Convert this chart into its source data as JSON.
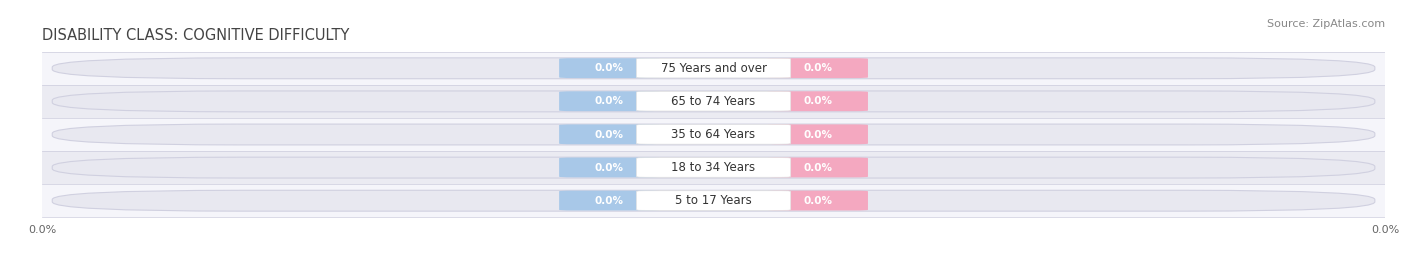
{
  "title": "DISABILITY CLASS: COGNITIVE DIFFICULTY",
  "source": "Source: ZipAtlas.com",
  "categories": [
    "5 to 17 Years",
    "18 to 34 Years",
    "35 to 64 Years",
    "65 to 74 Years",
    "75 Years and over"
  ],
  "male_values": [
    0.0,
    0.0,
    0.0,
    0.0,
    0.0
  ],
  "female_values": [
    0.0,
    0.0,
    0.0,
    0.0,
    0.0
  ],
  "male_color": "#a8c8e8",
  "female_color": "#f4a8c0",
  "male_legend_color": "#a8c8e8",
  "female_legend_color": "#f08098",
  "bar_track_color": "#e8e8f0",
  "bar_track_edge_color": "#d0d0e0",
  "center_box_color": "#ffffff",
  "row_alt_colors": [
    "#f5f5fa",
    "#ebebf2"
  ],
  "title_color": "#444444",
  "source_color": "#888888",
  "title_fontsize": 10.5,
  "source_fontsize": 8,
  "label_fontsize": 7.5,
  "category_fontsize": 8.5,
  "figsize": [
    14.06,
    2.69
  ],
  "dpi": 100
}
